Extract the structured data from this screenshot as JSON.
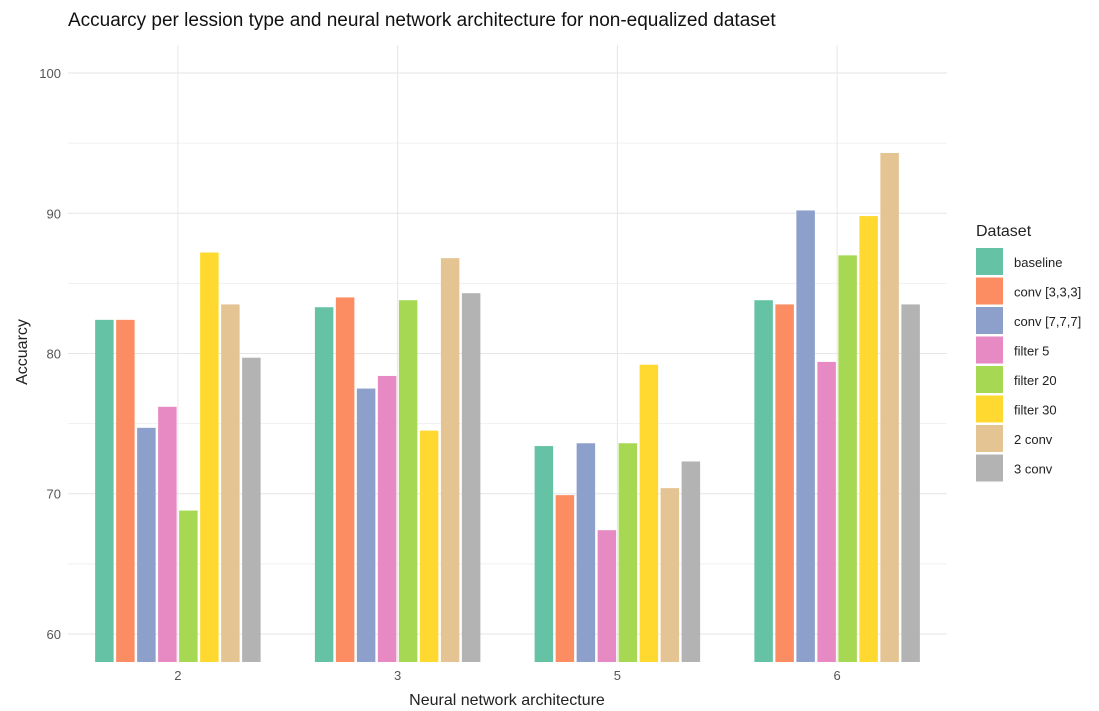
{
  "chart_data": {
    "type": "bar",
    "title": "Accuarcy per lession type and neural network architecture for non-equalized dataset",
    "xlabel": "Neural network architecture",
    "ylabel": "Accuarcy",
    "categories": [
      "2",
      "3",
      "5",
      "6"
    ],
    "yticks": [
      60,
      70,
      80,
      90,
      100
    ],
    "ylim": [
      58,
      102
    ],
    "grid": true,
    "legend": {
      "title": "Dataset",
      "position": "right"
    },
    "series": [
      {
        "name": "baseline",
        "color": "#66c2a5",
        "values": [
          82.4,
          83.3,
          73.4,
          83.8
        ]
      },
      {
        "name": "conv [3,3,3]",
        "color": "#fc8d62",
        "values": [
          82.4,
          84.0,
          69.9,
          83.5
        ]
      },
      {
        "name": "conv [7,7,7]",
        "color": "#8da0cb",
        "values": [
          74.7,
          77.5,
          73.6,
          90.2
        ]
      },
      {
        "name": "filter 5",
        "color": "#e78ac3",
        "values": [
          76.2,
          78.4,
          67.4,
          79.4
        ]
      },
      {
        "name": "filter 20",
        "color": "#a6d854",
        "values": [
          68.8,
          83.8,
          73.6,
          87.0
        ]
      },
      {
        "name": "filter 30",
        "color": "#ffd92f",
        "values": [
          87.2,
          74.5,
          79.2,
          89.8
        ]
      },
      {
        "name": "2 conv",
        "color": "#e5c494",
        "values": [
          83.5,
          86.8,
          70.4,
          94.3
        ]
      },
      {
        "name": "3 conv",
        "color": "#b3b3b3",
        "values": [
          79.7,
          84.3,
          72.3,
          83.5
        ]
      }
    ]
  }
}
